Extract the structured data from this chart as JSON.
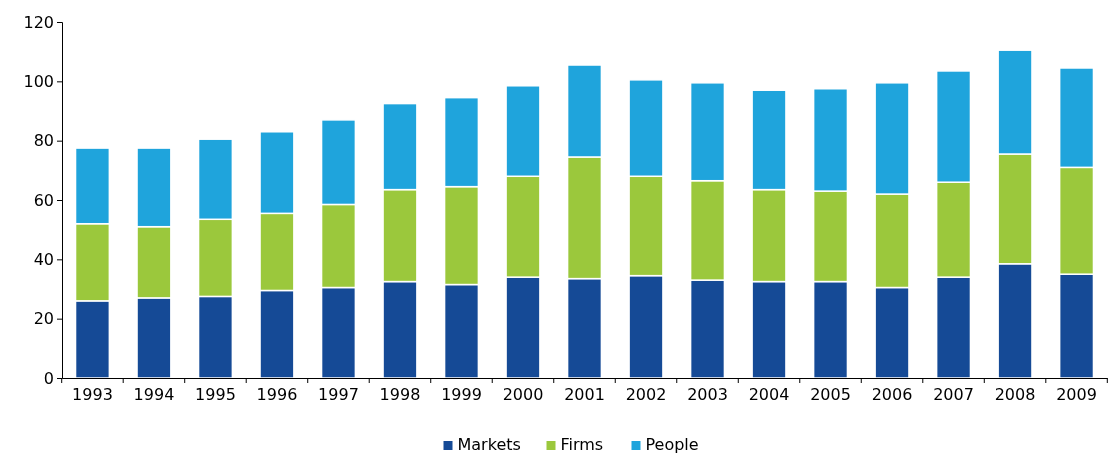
{
  "chart_data": {
    "type": "bar",
    "stacked": true,
    "categories": [
      "1993",
      "1994",
      "1995",
      "1996",
      "1997",
      "1998",
      "1999",
      "2000",
      "2001",
      "2002",
      "2003",
      "2004",
      "2005",
      "2006",
      "2007",
      "2008",
      "2009"
    ],
    "series": [
      {
        "name": "Markets",
        "color": "#154a96",
        "values": [
          26,
          27,
          27.5,
          29.5,
          30.5,
          32.5,
          31.5,
          34,
          33.5,
          34.5,
          33,
          32.5,
          32.5,
          30.5,
          34,
          38.5,
          35
        ]
      },
      {
        "name": "Firms",
        "color": "#9bc83c",
        "values": [
          26,
          24,
          26,
          26,
          28,
          31,
          33,
          34,
          41,
          33.5,
          33.5,
          31,
          30.5,
          31.5,
          32,
          37,
          36
        ]
      },
      {
        "name": "People",
        "color": "#1fa4dc",
        "values": [
          25.5,
          26.5,
          27,
          27.5,
          28.5,
          29,
          30,
          30.5,
          31,
          32.5,
          33,
          33.5,
          34.5,
          37.5,
          37.5,
          35,
          33.5
        ]
      }
    ],
    "ylim": [
      0,
      120
    ],
    "yticks": [
      0,
      20,
      40,
      60,
      80,
      100,
      120
    ],
    "grid": false,
    "legend": "bottom"
  }
}
